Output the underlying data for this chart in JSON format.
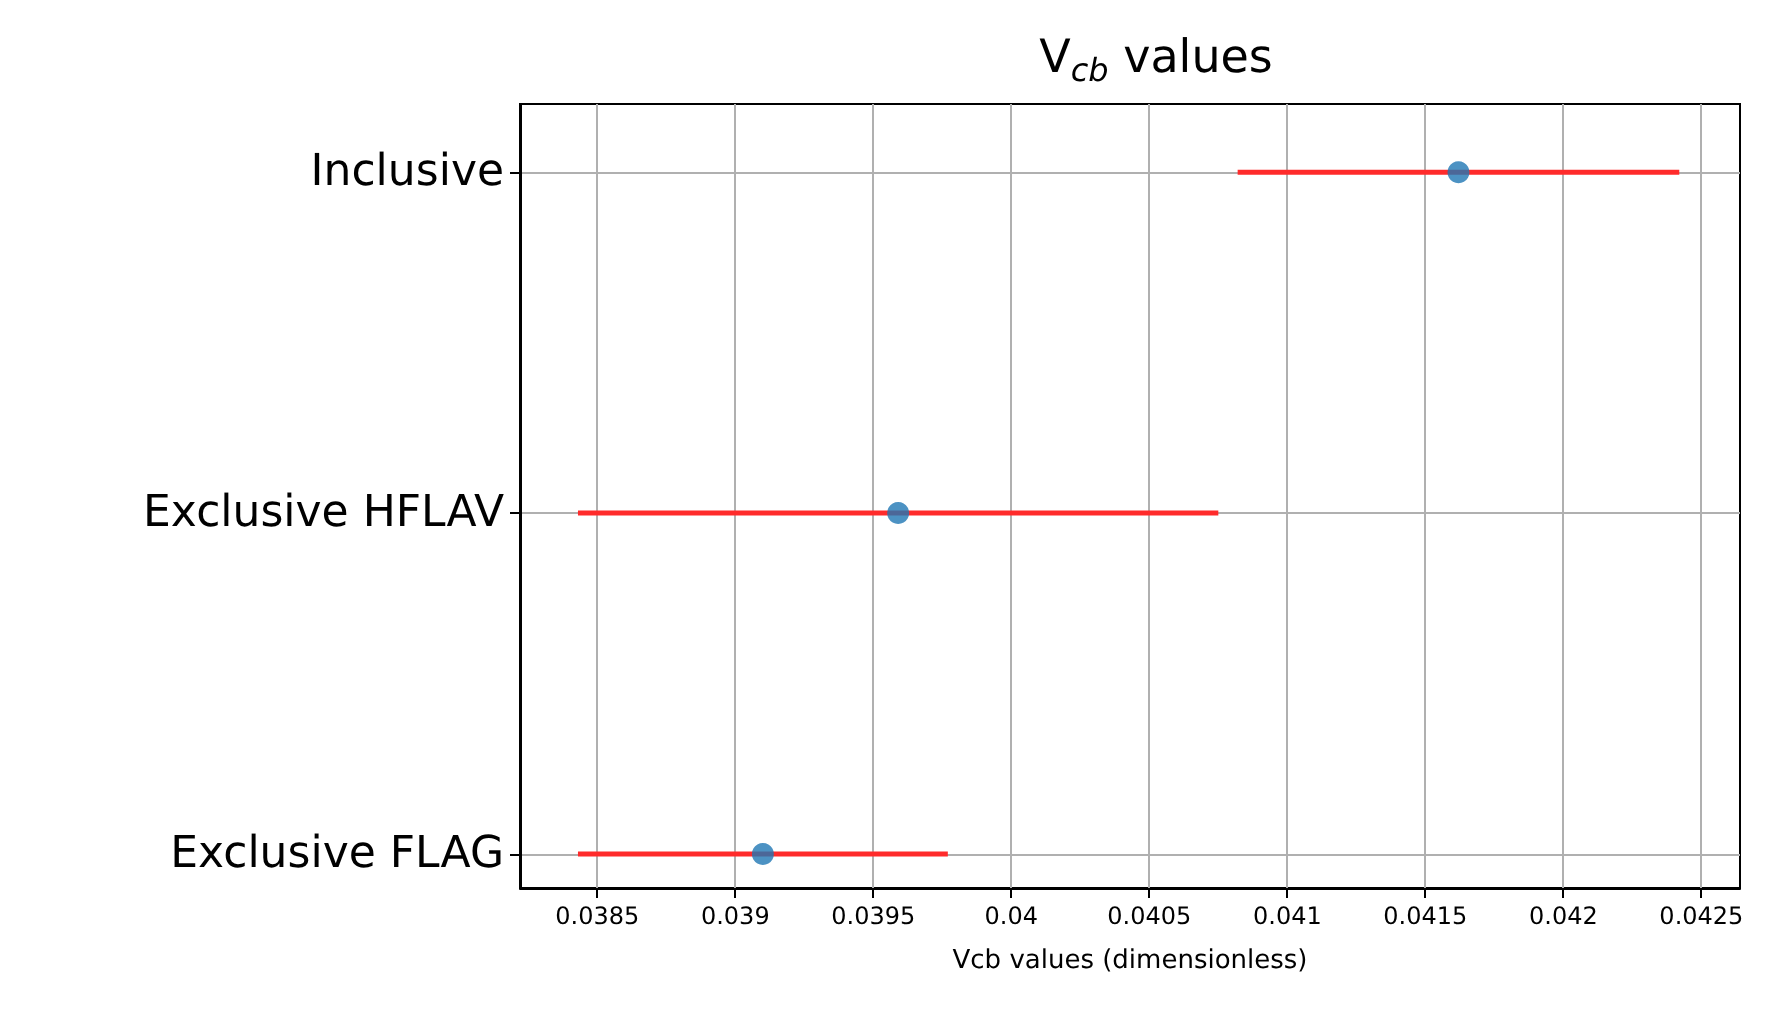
{
  "chart_data": {
    "type": "scatter",
    "orientation": "horizontal",
    "title": "V$_{cb}$ values",
    "xlabel": "Vcb values (dimensionless)",
    "categories": [
      "Inclusive",
      "Exclusive HFLAV",
      "Exclusive FLAG"
    ],
    "series": [
      {
        "color": "#1f77b4",
        "values": [
          0.04162,
          0.03959,
          0.0391
        ],
        "errors": [
          0.0008,
          0.00116,
          0.00067
        ]
      }
    ],
    "xlim": [
      0.03822,
      0.04264
    ],
    "xticks": [
      0.0385,
      0.039,
      0.0395,
      0.04,
      0.0405,
      0.041,
      0.0415,
      0.042,
      0.0425
    ],
    "grid": true,
    "marker": "circle"
  }
}
